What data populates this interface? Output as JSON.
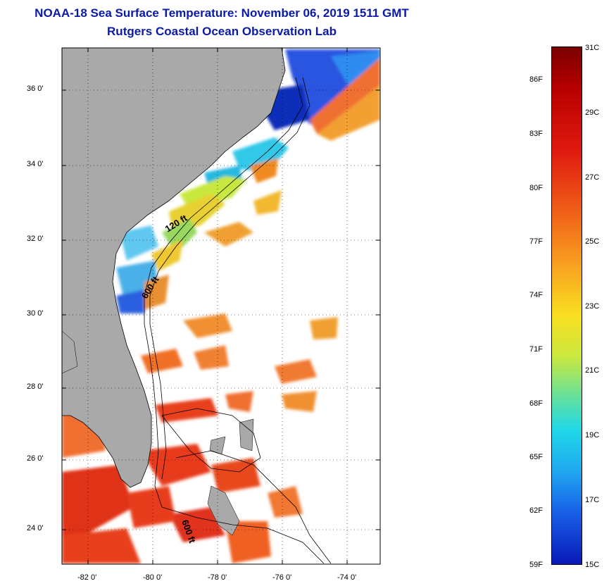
{
  "title": {
    "line1": "NOAA-18 Sea Surface Temperature:  November 06, 2019 1511 GMT",
    "line2": "Rutgers Coastal Ocean Observation Lab"
  },
  "map": {
    "lat_labels": [
      "36 0'",
      "34 0'",
      "32 0'",
      "30 0'",
      "28 0'",
      "26 0'",
      "24 0'"
    ],
    "lon_labels": [
      "-82 0'",
      "-80 0'",
      "-78 0'",
      "-76 0'",
      "-74 0'"
    ],
    "isobath_labels": [
      "120 ft",
      "600 ft",
      "600 ft"
    ],
    "colors": {
      "land": "#a9a9a9",
      "ocean": "#ffffff",
      "warm": "#e8361a",
      "cold": "#1e3fd8"
    }
  },
  "colorbar": {
    "fahrenheit_labels": [
      "86F",
      "83F",
      "80F",
      "77F",
      "74F",
      "71F",
      "68F",
      "65F",
      "62F",
      "59F"
    ],
    "celsius_labels": [
      "31C",
      "29C",
      "27C",
      "25C",
      "23C",
      "21C",
      "19C",
      "17C",
      "15C"
    ],
    "range_c": [
      15,
      31
    ],
    "range_f": [
      59,
      88
    ]
  }
}
